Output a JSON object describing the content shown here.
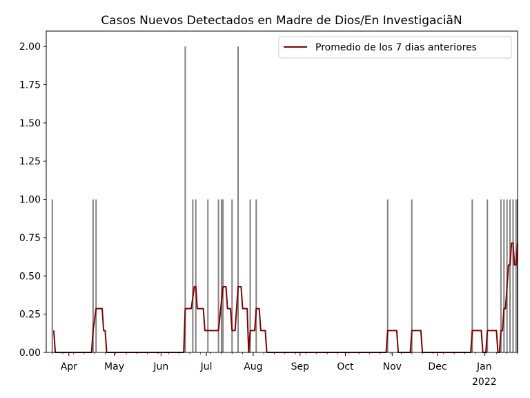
{
  "chart_data": {
    "type": "bar",
    "title": "Casos Nuevos Detectados en Madre de Dios/En Investigaciã\u0003N",
    "xlabel": "",
    "ylabel": "",
    "x_range": [
      "2021-03-17",
      "2022-01-23"
    ],
    "ylim": [
      0,
      2.1
    ],
    "y_ticks": [
      "0.00",
      "0.25",
      "0.50",
      "0.75",
      "1.00",
      "1.25",
      "1.50",
      "1.75",
      "2.00"
    ],
    "x_ticks": [
      {
        "date": "2021-04-01",
        "label": "Apr"
      },
      {
        "date": "2021-05-01",
        "label": "May"
      },
      {
        "date": "2021-06-01",
        "label": "Jun"
      },
      {
        "date": "2021-07-01",
        "label": "Jul"
      },
      {
        "date": "2021-08-01",
        "label": "Aug"
      },
      {
        "date": "2021-09-01",
        "label": "Sep"
      },
      {
        "date": "2021-10-01",
        "label": "Oct"
      },
      {
        "date": "2021-11-01",
        "label": "Nov"
      },
      {
        "date": "2021-12-01",
        "label": "Dec"
      },
      {
        "date": "2022-01-01",
        "label": "Jan"
      }
    ],
    "x_year_label": "2022",
    "grid": false,
    "legend_position": "top-right",
    "series": [
      {
        "kind": "bar",
        "color": "#808080",
        "points": [
          [
            "2021-03-21",
            1
          ],
          [
            "2021-04-17",
            1
          ],
          [
            "2021-04-19",
            1
          ],
          [
            "2021-06-17",
            2
          ],
          [
            "2021-06-22",
            1
          ],
          [
            "2021-06-24",
            1
          ],
          [
            "2021-07-02",
            1
          ],
          [
            "2021-07-09",
            1
          ],
          [
            "2021-07-11",
            1
          ],
          [
            "2021-07-12",
            1
          ],
          [
            "2021-07-18",
            1
          ],
          [
            "2021-07-22",
            2
          ],
          [
            "2021-07-30",
            1
          ],
          [
            "2021-08-03",
            1
          ],
          [
            "2021-10-29",
            1
          ],
          [
            "2021-11-14",
            1
          ],
          [
            "2021-12-24",
            1
          ],
          [
            "2022-01-03",
            1
          ],
          [
            "2022-01-12",
            1
          ],
          [
            "2022-01-14",
            1
          ],
          [
            "2022-01-16",
            1
          ],
          [
            "2022-01-18",
            1
          ],
          [
            "2022-01-20",
            1
          ],
          [
            "2022-01-22",
            1
          ],
          [
            "2022-01-23",
            1
          ]
        ]
      },
      {
        "kind": "line",
        "name": "Promedio de los 7 dias anteriores",
        "color": "#800000",
        "points": [
          [
            "2021-03-22",
            0.143
          ],
          [
            "2021-03-23",
            0
          ],
          [
            "2021-04-16",
            0
          ],
          [
            "2021-04-17",
            0.143
          ],
          [
            "2021-04-19",
            0.286
          ],
          [
            "2021-04-23",
            0.286
          ],
          [
            "2021-04-24",
            0.143
          ],
          [
            "2021-04-25",
            0.143
          ],
          [
            "2021-04-26",
            0
          ],
          [
            "2021-06-16",
            0
          ],
          [
            "2021-06-17",
            0.286
          ],
          [
            "2021-06-21",
            0.286
          ],
          [
            "2021-06-23",
            0.429
          ],
          [
            "2021-06-24",
            0.429
          ],
          [
            "2021-06-25",
            0.286
          ],
          [
            "2021-06-29",
            0.286
          ],
          [
            "2021-06-30",
            0.143
          ],
          [
            "2021-07-09",
            0.143
          ],
          [
            "2021-07-12",
            0.429
          ],
          [
            "2021-07-14",
            0.429
          ],
          [
            "2021-07-15",
            0.286
          ],
          [
            "2021-07-17",
            0.286
          ],
          [
            "2021-07-18",
            0.143
          ],
          [
            "2021-07-20",
            0.143
          ],
          [
            "2021-07-22",
            0.429
          ],
          [
            "2021-07-24",
            0.429
          ],
          [
            "2021-07-25",
            0.286
          ],
          [
            "2021-07-28",
            0.286
          ],
          [
            "2021-07-29",
            0
          ],
          [
            "2021-07-30",
            0.143
          ],
          [
            "2021-08-02",
            0.143
          ],
          [
            "2021-08-03",
            0.286
          ],
          [
            "2021-08-05",
            0.286
          ],
          [
            "2021-08-06",
            0.143
          ],
          [
            "2021-08-09",
            0.143
          ],
          [
            "2021-08-10",
            0
          ],
          [
            "2021-10-28",
            0
          ],
          [
            "2021-10-29",
            0.143
          ],
          [
            "2021-11-04",
            0.143
          ],
          [
            "2021-11-05",
            0
          ],
          [
            "2021-11-13",
            0
          ],
          [
            "2021-11-14",
            0.143
          ],
          [
            "2021-11-20",
            0.143
          ],
          [
            "2021-11-21",
            0
          ],
          [
            "2021-12-23",
            0
          ],
          [
            "2021-12-24",
            0.143
          ],
          [
            "2021-12-30",
            0.143
          ],
          [
            "2021-12-31",
            0
          ],
          [
            "2022-01-02",
            0
          ],
          [
            "2022-01-03",
            0.143
          ],
          [
            "2022-01-09",
            0.143
          ],
          [
            "2022-01-10",
            0
          ],
          [
            "2022-01-11",
            0
          ],
          [
            "2022-01-12",
            0.143
          ],
          [
            "2022-01-13",
            0.143
          ],
          [
            "2022-01-14",
            0.286
          ],
          [
            "2022-01-15",
            0.286
          ],
          [
            "2022-01-16",
            0.429
          ],
          [
            "2022-01-17",
            0.571
          ],
          [
            "2022-01-18",
            0.571
          ],
          [
            "2022-01-19",
            0.714
          ],
          [
            "2022-01-20",
            0.714
          ],
          [
            "2022-01-21",
            0.571
          ],
          [
            "2022-01-22",
            0.571
          ],
          [
            "2022-01-23",
            0.714
          ]
        ]
      }
    ]
  }
}
